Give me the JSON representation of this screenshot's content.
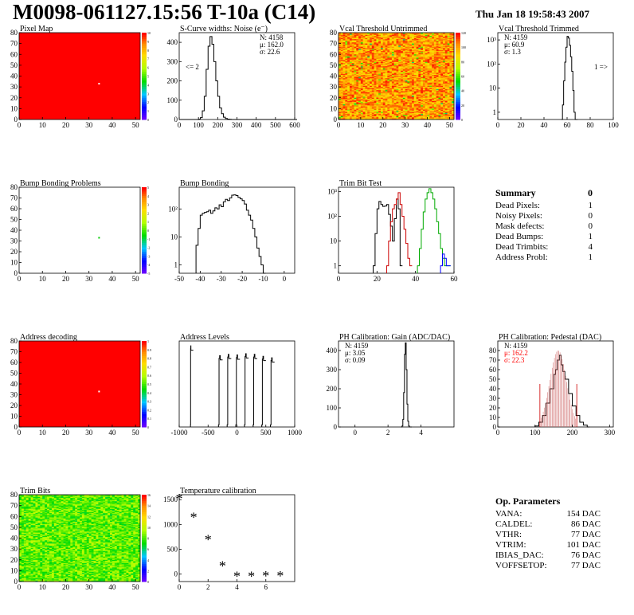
{
  "title": "M0098-061127.15:56 T-10a (C14)",
  "date": "Thu Jan 18 19:58:43 2007",
  "colors": {
    "red": "#ff0000",
    "black": "#000000",
    "green": "#00cc00",
    "blue": "#0000ff",
    "pink": "#cc6666"
  },
  "summary": {
    "heading": "Summary",
    "total": "0",
    "rows": [
      {
        "label": "Dead Pixels:",
        "value": "1"
      },
      {
        "label": "Noisy Pixels:",
        "value": "0"
      },
      {
        "label": "Mask defects:",
        "value": "0"
      },
      {
        "label": "Dead Bumps:",
        "value": "1"
      },
      {
        "label": "Dead Trimbits:",
        "value": "4"
      },
      {
        "label": "Address Probl:",
        "value": "1"
      }
    ]
  },
  "op_params": {
    "heading": "Op. Parameters",
    "rows": [
      {
        "label": "VANA:",
        "value": "154 DAC"
      },
      {
        "label": "CALDEL:",
        "value": "86 DAC"
      },
      {
        "label": "VTHR:",
        "value": "77 DAC"
      },
      {
        "label": "VTRIM:",
        "value": "101 DAC"
      },
      {
        "label": "IBIAS_DAC:",
        "value": "76 DAC"
      },
      {
        "label": "VOFFSETOP:",
        "value": "77 DAC"
      }
    ]
  },
  "chart_data": [
    {
      "id": "pixel-map",
      "type": "heatmap",
      "title": "Pixel Map",
      "xlim": [
        0,
        52
      ],
      "ylim": [
        0,
        80
      ],
      "xticks": [
        0,
        10,
        20,
        30,
        40,
        50
      ],
      "yticks": [
        0,
        10,
        20,
        30,
        40,
        50,
        60,
        70,
        80
      ],
      "fill": "uniform-red",
      "zrange": [
        0,
        10
      ],
      "palette_ticks": [
        "10",
        "9",
        "8",
        "7",
        "6",
        "5",
        "4",
        "3",
        "2",
        "1",
        "0"
      ],
      "special_pixels": [
        {
          "x": 34,
          "y": 33,
          "color": "#ffffff"
        }
      ]
    },
    {
      "id": "s-curve",
      "type": "line",
      "title": "S-Curve widths: Noise (e⁻)",
      "xlim": [
        0,
        600
      ],
      "ylim": [
        0,
        450
      ],
      "xticks": [
        0,
        100,
        200,
        300,
        400,
        500,
        600
      ],
      "yticks": [
        0,
        100,
        200,
        300,
        400
      ],
      "stats": [
        "N: 4158",
        "μ: 162.0",
        "σ: 22.6"
      ],
      "annotation": "<= 2",
      "x": [
        0,
        60,
        80,
        100,
        110,
        120,
        130,
        140,
        150,
        160,
        170,
        180,
        190,
        200,
        210,
        220,
        230,
        240,
        250,
        260,
        270,
        280,
        290,
        300,
        600
      ],
      "y": [
        0,
        0,
        0,
        2,
        10,
        45,
        120,
        260,
        380,
        430,
        390,
        300,
        200,
        120,
        60,
        30,
        12,
        5,
        2,
        1,
        0,
        0,
        0,
        0,
        0
      ]
    },
    {
      "id": "vcal-untrimmed",
      "type": "heatmap",
      "title": "Vcal Threshold Untrimmed",
      "xlim": [
        0,
        52
      ],
      "ylim": [
        0,
        80
      ],
      "xticks": [
        0,
        10,
        20,
        30,
        40,
        50
      ],
      "yticks": [
        0,
        10,
        20,
        30,
        40,
        50,
        60,
        70,
        80
      ],
      "fill": "noise-orange",
      "zrange": [
        0,
        120
      ],
      "palette_ticks": [
        "120",
        "100",
        "80",
        "60",
        "40",
        "20",
        "0"
      ]
    },
    {
      "id": "vcal-trimmed",
      "type": "line",
      "title": "Vcal Threshold Trimmed",
      "log_y": true,
      "xlim": [
        0,
        100
      ],
      "ylim": [
        0.5,
        2000
      ],
      "xticks": [
        0,
        20,
        40,
        60,
        80,
        100
      ],
      "yticks_log": [
        "1",
        "10",
        "10²",
        "10³"
      ],
      "stats": [
        "N: 4159",
        "μ: 60.9",
        "σ:  1.3"
      ],
      "annotation": "1 =>",
      "x": [
        55,
        56,
        57,
        58,
        59,
        60,
        61,
        62,
        63,
        64,
        65,
        66,
        67
      ],
      "y": [
        0,
        2,
        20,
        120,
        500,
        1400,
        1200,
        600,
        200,
        50,
        8,
        1,
        0
      ]
    },
    {
      "id": "bump-problems",
      "type": "heatmap",
      "title": "Bump Bonding Problems",
      "xlim": [
        0,
        52
      ],
      "ylim": [
        0,
        80
      ],
      "xticks": [
        0,
        10,
        20,
        30,
        40,
        50
      ],
      "yticks": [
        0,
        10,
        20,
        30,
        40,
        50,
        60,
        70,
        80
      ],
      "fill": "white",
      "zrange": [
        -5,
        5
      ],
      "palette_ticks": [
        "5",
        "4",
        "3",
        "2",
        "1",
        "0",
        "-1",
        "-2",
        "-3",
        "-4",
        "-5"
      ],
      "special_pixels": [
        {
          "x": 34,
          "y": 33,
          "color": "#00cc00"
        }
      ]
    },
    {
      "id": "bump-bonding",
      "type": "line",
      "title": "Bump Bonding",
      "log_y": true,
      "xlim": [
        -50,
        5
      ],
      "ylim": [
        0.5,
        600
      ],
      "xticks": [
        -50,
        -40,
        -30,
        -20,
        -10,
        0
      ],
      "yticks_log": [
        "1",
        "10",
        "10²"
      ],
      "x": [
        -42,
        -41,
        -40,
        -39,
        -38,
        -37,
        -36,
        -35,
        -34,
        -33,
        -32,
        -31,
        -30,
        -29,
        -28,
        -27,
        -26,
        -25,
        -24,
        -23,
        -22,
        -21,
        -20,
        -19,
        -18,
        -17,
        -16,
        -15,
        -14,
        -13,
        -12,
        -11,
        -10
      ],
      "y": [
        5,
        20,
        60,
        70,
        75,
        80,
        90,
        70,
        85,
        110,
        100,
        140,
        120,
        180,
        220,
        200,
        250,
        310,
        320,
        300,
        260,
        230,
        200,
        150,
        90,
        60,
        40,
        20,
        10,
        4,
        2,
        1,
        0
      ]
    },
    {
      "id": "trim-bit-test",
      "type": "line",
      "title": "Trim Bit Test",
      "log_y": true,
      "xlim": [
        0,
        60
      ],
      "ylim": [
        0.5,
        1500
      ],
      "xticks": [
        0,
        20,
        40,
        60
      ],
      "yticks_log": [
        "1",
        "10",
        "10²",
        "10³"
      ],
      "series": [
        {
          "color": "#000000",
          "x": [
            18,
            19,
            20,
            21,
            22,
            23,
            24,
            25,
            26,
            27,
            28,
            29,
            30,
            31,
            32
          ],
          "y": [
            1,
            20,
            200,
            400,
            300,
            250,
            260,
            300,
            120,
            40,
            10,
            80,
            500,
            200,
            1
          ]
        },
        {
          "color": "#cc0000",
          "x": [
            25,
            26,
            27,
            28,
            29,
            30,
            31,
            32,
            33,
            34,
            35,
            36,
            37
          ],
          "y": [
            1,
            10,
            60,
            200,
            300,
            500,
            900,
            300,
            100,
            30,
            8,
            2,
            1
          ]
        },
        {
          "color": "#00aa00",
          "x": [
            41,
            42,
            43,
            44,
            45,
            46,
            47,
            48,
            49,
            50,
            51,
            52,
            53,
            54,
            55,
            56,
            57
          ],
          "y": [
            1,
            5,
            30,
            150,
            500,
            900,
            1300,
            900,
            500,
            200,
            60,
            20,
            5,
            2,
            1,
            1,
            1
          ]
        },
        {
          "color": "#0000ff",
          "x": [
            53,
            54,
            55,
            56,
            57
          ],
          "y": [
            1,
            3,
            2,
            1,
            1
          ]
        }
      ]
    },
    {
      "id": "address-decoding",
      "type": "heatmap",
      "title": "Address decoding",
      "xlim": [
        0,
        52
      ],
      "ylim": [
        0,
        80
      ],
      "xticks": [
        0,
        10,
        20,
        30,
        40,
        50
      ],
      "yticks": [
        0,
        10,
        20,
        30,
        40,
        50,
        60,
        70,
        80
      ],
      "fill": "uniform-red",
      "zrange": [
        0,
        1
      ],
      "palette_ticks": [
        "1",
        "0.9",
        "0.8",
        "0.7",
        "0.6",
        "0.5",
        "0.4",
        "0.3",
        "0.2",
        "0.1",
        "0"
      ],
      "special_pixels": [
        {
          "x": 34,
          "y": 33,
          "color": "#ffffff"
        }
      ]
    },
    {
      "id": "address-levels",
      "type": "line",
      "title": "Address Levels",
      "log_y": true,
      "xlim": [
        -1000,
        1000
      ],
      "ylim": [
        0.5,
        600
      ],
      "xticks": [
        -1000,
        -500,
        0,
        500,
        1000
      ],
      "peaks": [
        {
          "center": -800,
          "height": 400,
          "width": 10
        },
        {
          "center": -300,
          "height": 180,
          "width": 40
        },
        {
          "center": -150,
          "height": 200,
          "width": 40
        },
        {
          "center": 0,
          "height": 190,
          "width": 40
        },
        {
          "center": 150,
          "height": 210,
          "width": 40
        },
        {
          "center": 300,
          "height": 200,
          "width": 40
        },
        {
          "center": 450,
          "height": 170,
          "width": 40
        },
        {
          "center": 600,
          "height": 150,
          "width": 40
        }
      ]
    },
    {
      "id": "ph-gain",
      "type": "line",
      "title": "PH Calibration: Gain (ADC/DAC)",
      "xlim": [
        -1,
        6
      ],
      "ylim": [
        0,
        450
      ],
      "xticks": [
        0,
        2,
        4
      ],
      "yticks": [
        0,
        100,
        200,
        300,
        400
      ],
      "stats": [
        "N: 4159",
        "μ: 3.05",
        "σ: 0.09"
      ],
      "x": [
        2.8,
        2.85,
        2.9,
        2.95,
        3.0,
        3.05,
        3.1,
        3.15,
        3.2,
        3.25,
        3.3
      ],
      "y": [
        0,
        5,
        40,
        180,
        380,
        440,
        300,
        120,
        30,
        5,
        0
      ]
    },
    {
      "id": "ph-pedestal",
      "type": "line",
      "title": "PH Calibration: Pedestal (DAC)",
      "xlim": [
        0,
        310
      ],
      "ylim": [
        0,
        90
      ],
      "xticks": [
        0,
        100,
        200,
        300
      ],
      "yticks": [
        0,
        10,
        20,
        30,
        40,
        50,
        60,
        70,
        80
      ],
      "stats": [
        "N: 4159"
      ],
      "stats_red": [
        "μ: 162.2",
        "σ: 22.3"
      ],
      "fit_range": [
        113,
        212
      ],
      "x": [
        100,
        110,
        120,
        130,
        140,
        150,
        155,
        160,
        165,
        170,
        175,
        180,
        190,
        200,
        210,
        220,
        230,
        240
      ],
      "y": [
        1,
        5,
        12,
        25,
        40,
        55,
        60,
        70,
        75,
        65,
        58,
        50,
        35,
        22,
        12,
        5,
        2,
        0
      ]
    },
    {
      "id": "trim-bits",
      "type": "heatmap",
      "title": "Trim Bits",
      "xlim": [
        0,
        52
      ],
      "ylim": [
        0,
        80
      ],
      "xticks": [
        0,
        10,
        20,
        30,
        40,
        50
      ],
      "yticks": [
        0,
        10,
        20,
        30,
        40,
        50,
        60,
        70,
        80
      ],
      "fill": "noise-green",
      "zrange": [
        0,
        16
      ],
      "palette_ticks": [
        "16",
        "14",
        "12",
        "10",
        "8",
        "6",
        "4",
        "2",
        "0"
      ]
    },
    {
      "id": "temperature",
      "type": "scatter",
      "title": "Temperature calibration",
      "xlim": [
        0,
        8
      ],
      "ylim": [
        -150,
        1600
      ],
      "xticks": [
        0,
        2,
        4,
        6
      ],
      "yticks": [
        0,
        500,
        1000,
        1500
      ],
      "x": [
        0,
        1,
        2,
        3,
        4,
        5,
        6,
        7
      ],
      "y": [
        1500,
        1130,
        680,
        150,
        -60,
        -60,
        -55,
        -55
      ]
    }
  ]
}
